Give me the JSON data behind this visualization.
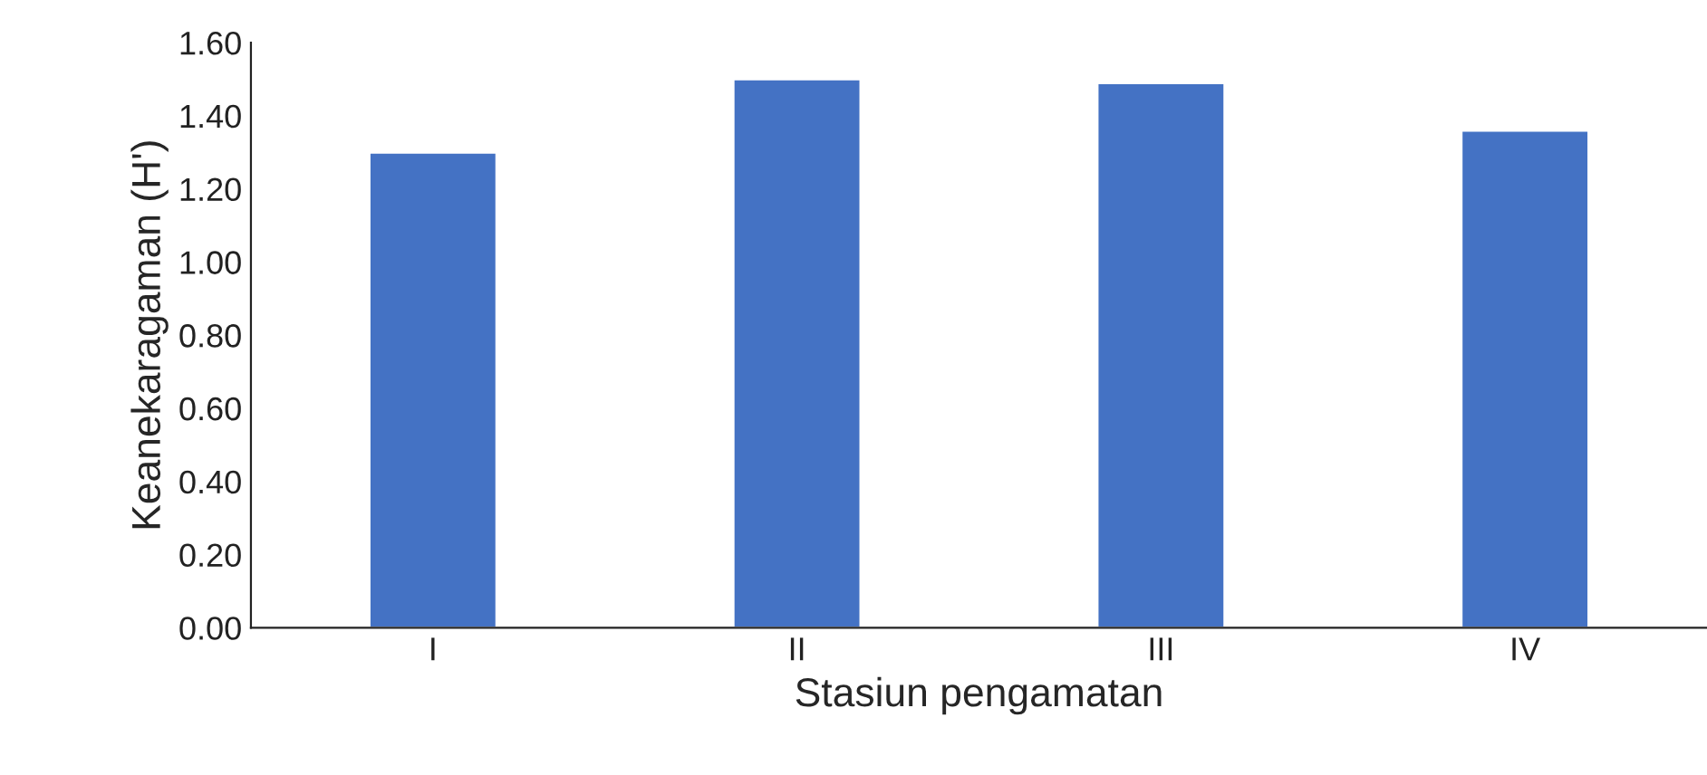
{
  "chart_data": {
    "type": "bar",
    "xlabel": "Stasiun pengamatan",
    "ylabel": "Keanekaragaman (H')",
    "categories": [
      "I",
      "II",
      "III",
      "IV"
    ],
    "values": [
      1.3,
      1.5,
      1.49,
      1.36
    ],
    "color": "#4472c4",
    "ylim": [
      0,
      1.6
    ],
    "yticks": [
      {
        "value": 0,
        "label": "0.00"
      },
      {
        "value": 0.2,
        "label": "0.20"
      },
      {
        "value": 0.4,
        "label": "0.40"
      },
      {
        "value": 0.6,
        "label": "0.60"
      },
      {
        "value": 0.8,
        "label": "0.80"
      },
      {
        "value": 1.0,
        "label": "1.00"
      },
      {
        "value": 1.2,
        "label": "1.20"
      },
      {
        "value": 1.4,
        "label": "1.40"
      },
      {
        "value": 1.6,
        "label": "1.60"
      }
    ],
    "grid": false,
    "legend": false
  }
}
